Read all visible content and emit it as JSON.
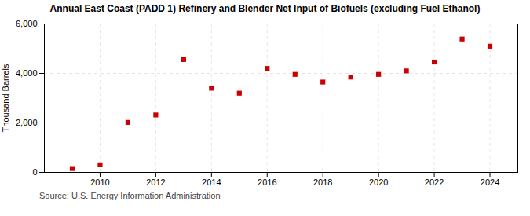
{
  "chart_data": {
    "type": "scatter",
    "title": "Annual East Coast (PADD 1) Refinery and Blender Net Input of Biofuels (excluding Fuel Ethanol)",
    "ylabel": "Thousand Barrels",
    "annotations": [
      "Source: U.S. Energy Information Administration"
    ],
    "x": [
      2009,
      2010,
      2011,
      2012,
      2013,
      2014,
      2015,
      2016,
      2017,
      2018,
      2019,
      2020,
      2021,
      2022,
      2023,
      2024
    ],
    "values": [
      155,
      305,
      2020,
      2320,
      4560,
      3400,
      3200,
      4200,
      3960,
      3650,
      3850,
      3960,
      4100,
      4460,
      5390,
      5100
    ],
    "color": "#cc0000",
    "marker": "square",
    "xlim": [
      2008,
      2025
    ],
    "xticks": [
      2010,
      2012,
      2014,
      2016,
      2018,
      2020,
      2022,
      2024
    ],
    "ylim": [
      0,
      6000
    ],
    "yticks": [
      0,
      {
        "value": 2000,
        "label": "2,000"
      },
      {
        "value": 4000,
        "label": "4,000"
      },
      {
        "value": 6000,
        "label": "6,000"
      }
    ],
    "grid": true
  }
}
